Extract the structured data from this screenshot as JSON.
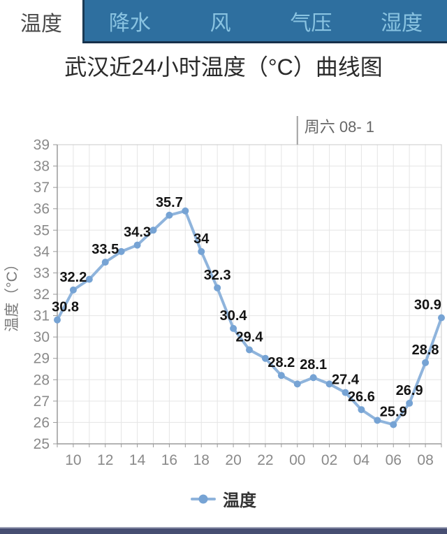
{
  "tabs": {
    "active": "温度",
    "items": [
      {
        "label": "温度",
        "active": true
      },
      {
        "label": "降水",
        "active": false
      },
      {
        "label": "风",
        "active": false
      },
      {
        "label": "气压",
        "active": false
      },
      {
        "label": "湿度",
        "active": false
      }
    ]
  },
  "title": "武汉近24小时温度（°C）曲线图",
  "chart_data": {
    "type": "line",
    "title": "武汉近24小时温度（°C）曲线图",
    "xlabel": "",
    "ylabel": "温度（°C）",
    "ylim": [
      25,
      39
    ],
    "y_ticks": [
      39,
      38,
      37,
      36,
      35,
      34,
      33,
      32,
      31,
      30,
      29,
      28,
      27,
      26,
      25
    ],
    "x_tick_labels": [
      "10",
      "12",
      "14",
      "16",
      "18",
      "20",
      "22",
      "00",
      "02",
      "04",
      "06",
      "08"
    ],
    "grid": true,
    "annotation": {
      "text": "周六 08- 1",
      "at_hour_index": 15
    },
    "legend": {
      "label": "温度",
      "position": "bottom"
    },
    "series": [
      {
        "name": "温度",
        "x_hours": [
          "09",
          "10",
          "11",
          "12",
          "13",
          "14",
          "15",
          "16",
          "17",
          "18",
          "19",
          "20",
          "21",
          "22",
          "23",
          "00",
          "01",
          "02",
          "03",
          "04",
          "05",
          "06",
          "07",
          "08",
          "09"
        ],
        "values": [
          30.8,
          32.2,
          32.7,
          33.5,
          34.0,
          34.3,
          35.0,
          35.7,
          35.9,
          34,
          32.3,
          30.4,
          29.4,
          29.0,
          28.2,
          27.8,
          28.1,
          27.8,
          27.4,
          26.6,
          26.1,
          25.9,
          26.9,
          28.8,
          30.9
        ],
        "labels": [
          "30.8",
          "32.2",
          "",
          "33.5",
          "",
          "34.3",
          "",
          "35.7",
          "",
          "34",
          "32.3",
          "30.4",
          "29.4",
          "",
          "28.2",
          "",
          "28.1",
          "",
          "27.4",
          "26.6",
          "",
          "25.9",
          "26.9",
          "28.8",
          "30.9"
        ]
      }
    ],
    "colors": {
      "line": "#8fb4dc",
      "marker": "#76a3d4",
      "data_label": "#141414",
      "axis_text": "#8a8a8a",
      "grid": "#e5e5e5",
      "border": "#c8c8c8",
      "axis_line": "#9a9a9a",
      "annotation_text": "#666666",
      "annotation_line": "#a0a0a0"
    }
  },
  "colors": {
    "tab_bar_bg": "#2e6f9f",
    "tab_bar_border": "#1b3a55",
    "tab_active_bg": "#ffffff",
    "tab_active_text": "#4a4a4a",
    "tab_inactive_text": "#89c3e1",
    "title_text": "#2a2a2a",
    "legend_text": "#333333",
    "bottom_bar": "#474e72"
  }
}
